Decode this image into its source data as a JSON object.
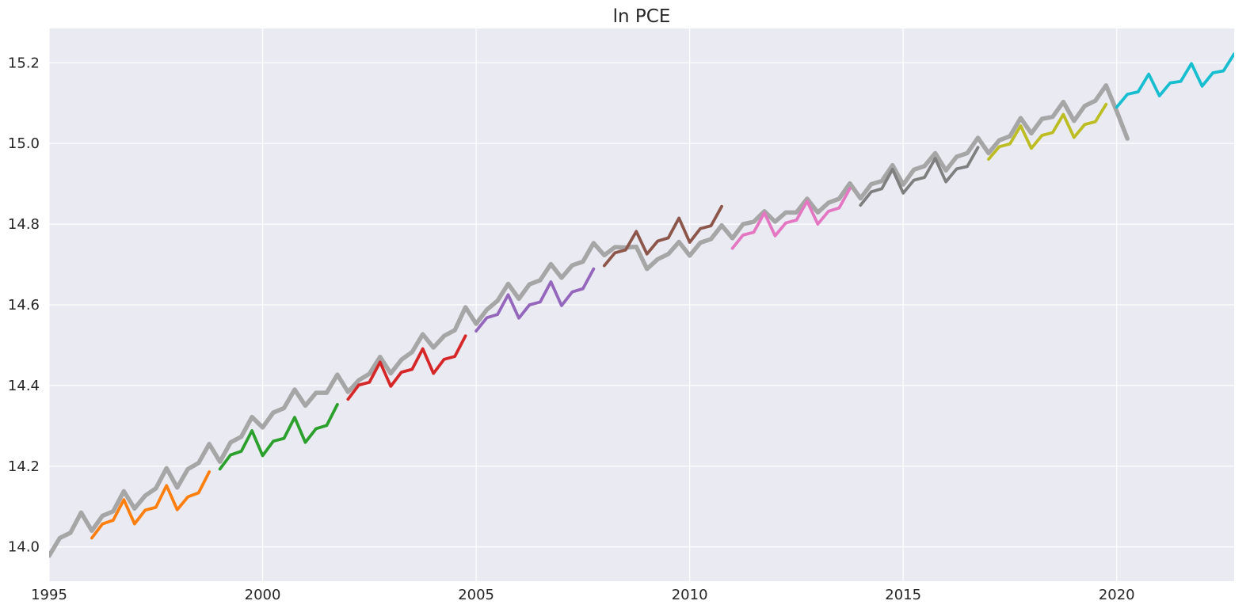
{
  "chart_data": {
    "type": "line",
    "title": "ln PCE",
    "xlabel": "",
    "ylabel": "",
    "xlim": [
      1995.0,
      2022.75
    ],
    "ylim": [
      13.915,
      15.285
    ],
    "grid": true,
    "legend": "none",
    "x_ticks": [
      1995,
      2000,
      2005,
      2010,
      2015,
      2020
    ],
    "x_tick_labels": [
      "1995",
      "2000",
      "2005",
      "2010",
      "2015",
      "2020"
    ],
    "y_ticks": [
      14.0,
      14.2,
      14.4,
      14.6,
      14.8,
      15.0,
      15.2
    ],
    "y_tick_labels": [
      "14.0",
      "14.2",
      "14.4",
      "14.6",
      "14.8",
      "15.0",
      "15.2"
    ],
    "background_color": "#eaeaf2",
    "grid_color": "#ffffff",
    "series": [
      {
        "color": "#a6a6a6",
        "x_start": 1995.0,
        "x_step": 0.25,
        "values": [
          13.978,
          14.022,
          14.035,
          14.085,
          14.04,
          14.077,
          14.088,
          14.138,
          14.095,
          14.127,
          14.145,
          14.195,
          14.147,
          14.193,
          14.208,
          14.255,
          14.211,
          14.259,
          14.273,
          14.322,
          14.296,
          14.333,
          14.344,
          14.39,
          14.35,
          14.382,
          14.382,
          14.427,
          14.384,
          14.413,
          14.429,
          14.471,
          14.43,
          14.464,
          14.483,
          14.527,
          14.494,
          14.523,
          14.537,
          14.594,
          14.553,
          14.588,
          14.61,
          14.652,
          14.615,
          14.651,
          14.661,
          14.701,
          14.667,
          14.698,
          14.707,
          14.753,
          14.723,
          14.743,
          14.742,
          14.744,
          14.689,
          14.713,
          14.726,
          14.756,
          14.722,
          14.754,
          14.763,
          14.797,
          14.765,
          14.8,
          14.806,
          14.832,
          14.806,
          14.829,
          14.829,
          14.863,
          14.829,
          14.853,
          14.863,
          14.901,
          14.864,
          14.899,
          14.907,
          14.946,
          14.898,
          14.935,
          14.944,
          14.976,
          14.933,
          14.967,
          14.976,
          15.014,
          14.976,
          15.008,
          15.018,
          15.063,
          15.025,
          15.061,
          15.066,
          15.103,
          15.056,
          15.093,
          15.106,
          15.144,
          15.08,
          15.012
        ]
      },
      {
        "color": "#ff7f0e",
        "x_start": 1996.0,
        "x_step": 0.25,
        "values": [
          14.022,
          14.057,
          14.066,
          14.117,
          14.057,
          14.091,
          14.098,
          14.152,
          14.092,
          14.124,
          14.134,
          14.186
        ]
      },
      {
        "color": "#2ca02c",
        "x_start": 1999.0,
        "x_step": 0.25,
        "values": [
          14.193,
          14.228,
          14.237,
          14.288,
          14.226,
          14.262,
          14.269,
          14.321,
          14.259,
          14.293,
          14.301,
          14.353
        ]
      },
      {
        "color": "#d62728",
        "x_start": 2002.0,
        "x_step": 0.25,
        "values": [
          14.366,
          14.401,
          14.408,
          14.458,
          14.398,
          14.433,
          14.44,
          14.491,
          14.43,
          14.465,
          14.472,
          14.523
        ]
      },
      {
        "color": "#9467bd",
        "x_start": 2005.0,
        "x_step": 0.25,
        "values": [
          14.535,
          14.568,
          14.576,
          14.625,
          14.567,
          14.6,
          14.607,
          14.657,
          14.598,
          14.632,
          14.64,
          14.689
        ]
      },
      {
        "color": "#8c564b",
        "x_start": 2008.0,
        "x_step": 0.25,
        "values": [
          14.697,
          14.729,
          14.736,
          14.782,
          14.726,
          14.758,
          14.766,
          14.815,
          14.755,
          14.789,
          14.796,
          14.844
        ]
      },
      {
        "color": "#e377c2",
        "x_start": 2011.0,
        "x_step": 0.25,
        "values": [
          14.74,
          14.773,
          14.78,
          14.828,
          14.771,
          14.803,
          14.81,
          14.857,
          14.8,
          14.832,
          14.84,
          14.888
        ]
      },
      {
        "color": "#7f7f7f",
        "x_start": 2014.0,
        "x_step": 0.25,
        "values": [
          14.847,
          14.88,
          14.888,
          14.936,
          14.877,
          14.909,
          14.916,
          14.963,
          14.905,
          14.937,
          14.943,
          14.99
        ]
      },
      {
        "color": "#bcbd22",
        "x_start": 2017.0,
        "x_step": 0.25,
        "values": [
          14.961,
          14.992,
          14.999,
          15.044,
          14.988,
          15.02,
          15.027,
          15.072,
          15.015,
          15.047,
          15.054,
          15.097
        ]
      },
      {
        "color": "#17becf",
        "x_start": 2020.0,
        "x_step": 0.25,
        "values": [
          15.09,
          15.122,
          15.128,
          15.172,
          15.118,
          15.15,
          15.154,
          15.198,
          15.142,
          15.175,
          15.18,
          15.222
        ]
      }
    ]
  }
}
